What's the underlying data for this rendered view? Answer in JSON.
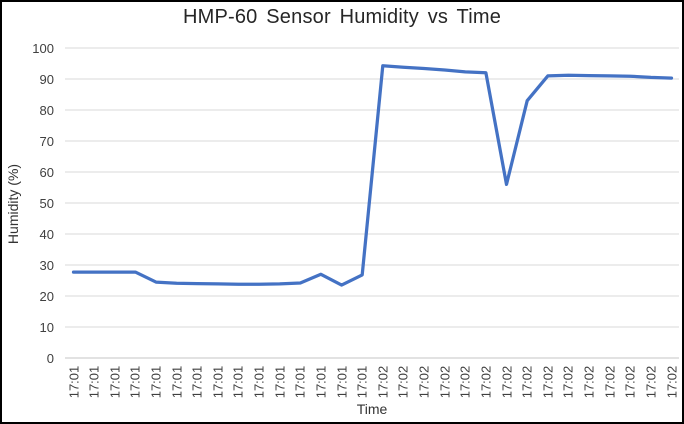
{
  "chart_data": {
    "type": "line",
    "title": "HMP-60 Sensor Humidity vs Time",
    "xlabel": "Time",
    "ylabel": "Humidity (%)",
    "ylim": [
      0,
      100
    ],
    "yticks": [
      0,
      10,
      20,
      30,
      40,
      50,
      60,
      70,
      80,
      90,
      100
    ],
    "grid": true,
    "legend_position": "none",
    "line_color": "#4472C4",
    "gridline_color": "#D9D9D9",
    "axis_line_color": "#C6C6C6",
    "tick_label_color": "#404040",
    "categories": [
      "17:01",
      "17:01",
      "17:01",
      "17:01",
      "17:01",
      "17:01",
      "17:01",
      "17:01",
      "17:01",
      "17:01",
      "17:01",
      "17:01",
      "17:01",
      "17:01",
      "17:01",
      "17:02",
      "17:02",
      "17:02",
      "17:02",
      "17:02",
      "17:02",
      "17:02",
      "17:02",
      "17:02",
      "17:02",
      "17:02",
      "17:02",
      "17:02",
      "17:02",
      "17:02"
    ],
    "values": [
      27.7,
      27.7,
      27.7,
      27.7,
      24.5,
      24.1,
      24.0,
      23.9,
      23.8,
      23.8,
      23.9,
      24.2,
      27.0,
      23.5,
      26.8,
      94.3,
      93.8,
      93.4,
      92.9,
      92.3,
      92.0,
      56.0,
      83.0,
      91.0,
      91.2,
      91.1,
      91.0,
      90.9,
      90.5,
      90.3
    ]
  }
}
